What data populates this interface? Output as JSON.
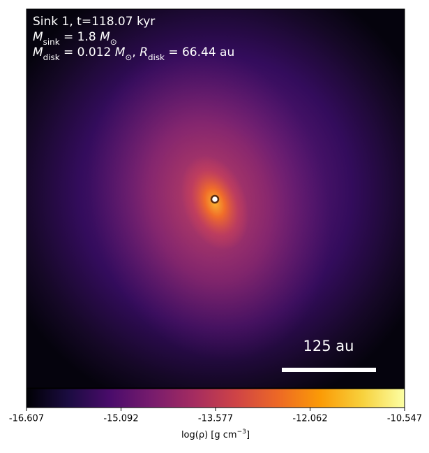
{
  "chart_data": {
    "type": "density-map",
    "annotations": [
      [
        {
          "text": "Sink 1, t=118.07 kyr"
        }
      ],
      [
        {
          "text": "M",
          "style": "italic"
        },
        {
          "text": "sink",
          "style": "sub"
        },
        {
          "text": " = 1.8 "
        },
        {
          "text": "M",
          "style": "italic"
        },
        {
          "text": "⊙",
          "style": "sub"
        }
      ],
      [
        {
          "text": "M",
          "style": "italic"
        },
        {
          "text": "disk",
          "style": "sub"
        },
        {
          "text": " = 0.012 "
        },
        {
          "text": "M",
          "style": "italic"
        },
        {
          "text": "⊙",
          "style": "sub"
        },
        {
          "text": ", "
        },
        {
          "text": "R",
          "style": "italic"
        },
        {
          "text": "disk",
          "style": "sub"
        },
        {
          "text": " = 66.44 au"
        }
      ]
    ],
    "scale_bar": "125 au",
    "colormap": "inferno",
    "colorbar": {
      "xlim": [
        -16.607,
        -10.547
      ],
      "xticks": [
        -16.607,
        -15.092,
        -13.577,
        -12.062,
        -10.547
      ],
      "label": [
        {
          "text": "log(ρ) [g cm"
        },
        {
          "text": "−3",
          "style": "sup"
        },
        {
          "text": "]"
        }
      ]
    }
  }
}
